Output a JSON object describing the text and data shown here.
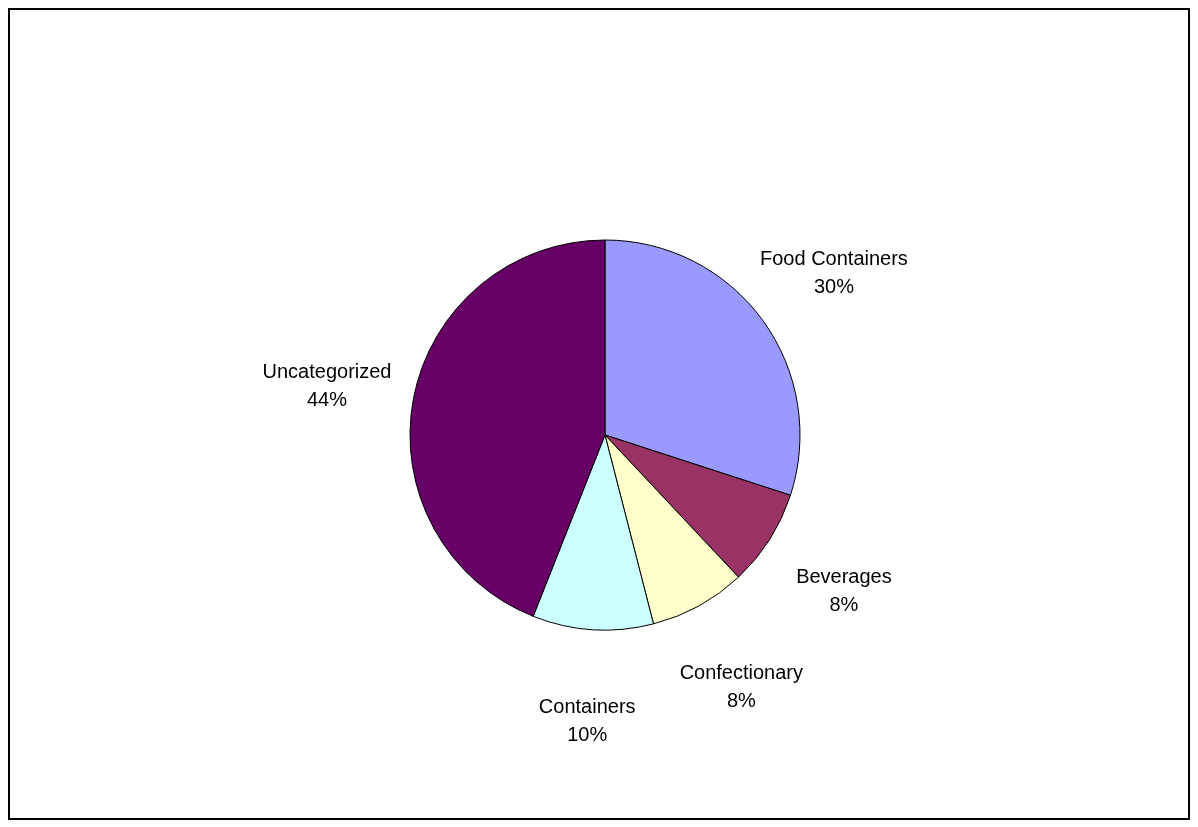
{
  "chart_data": {
    "type": "pie",
    "categories": [
      "Food Containers",
      "Beverages",
      "Confectionary",
      "Containers",
      "Uncategorized"
    ],
    "values": [
      30,
      8,
      8,
      10,
      44
    ],
    "value_labels": [
      "30%",
      "8%",
      "8%",
      "10%",
      "44%"
    ],
    "colors": [
      "#9999ff",
      "#993366",
      "#ffffcc",
      "#ccffff",
      "#660066"
    ]
  }
}
